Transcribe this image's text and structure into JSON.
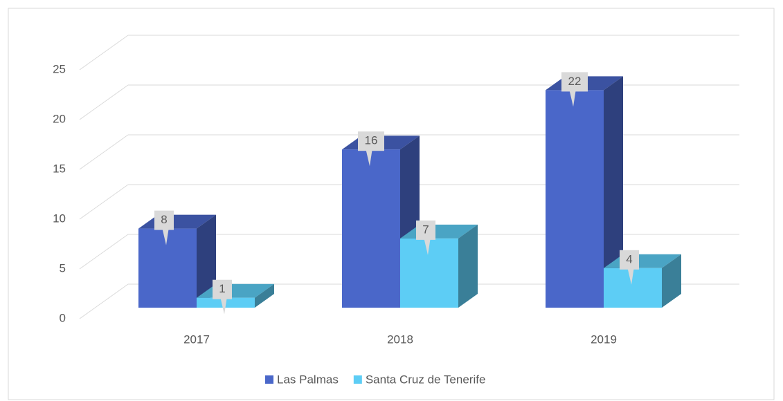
{
  "chart_data": {
    "type": "bar3d",
    "categories": [
      "2017",
      "2018",
      "2019"
    ],
    "series": [
      {
        "name": "Las Palmas",
        "color": "#4a67c9",
        "values": [
          8,
          16,
          22
        ]
      },
      {
        "name": "Santa Cruz de Tenerife",
        "color": "#5dcdf5",
        "values": [
          1,
          7,
          4
        ]
      }
    ],
    "ylim": [
      0,
      25
    ],
    "yticks": [
      0,
      5,
      10,
      15,
      20,
      25
    ],
    "grid": true,
    "legend": "bottom"
  }
}
